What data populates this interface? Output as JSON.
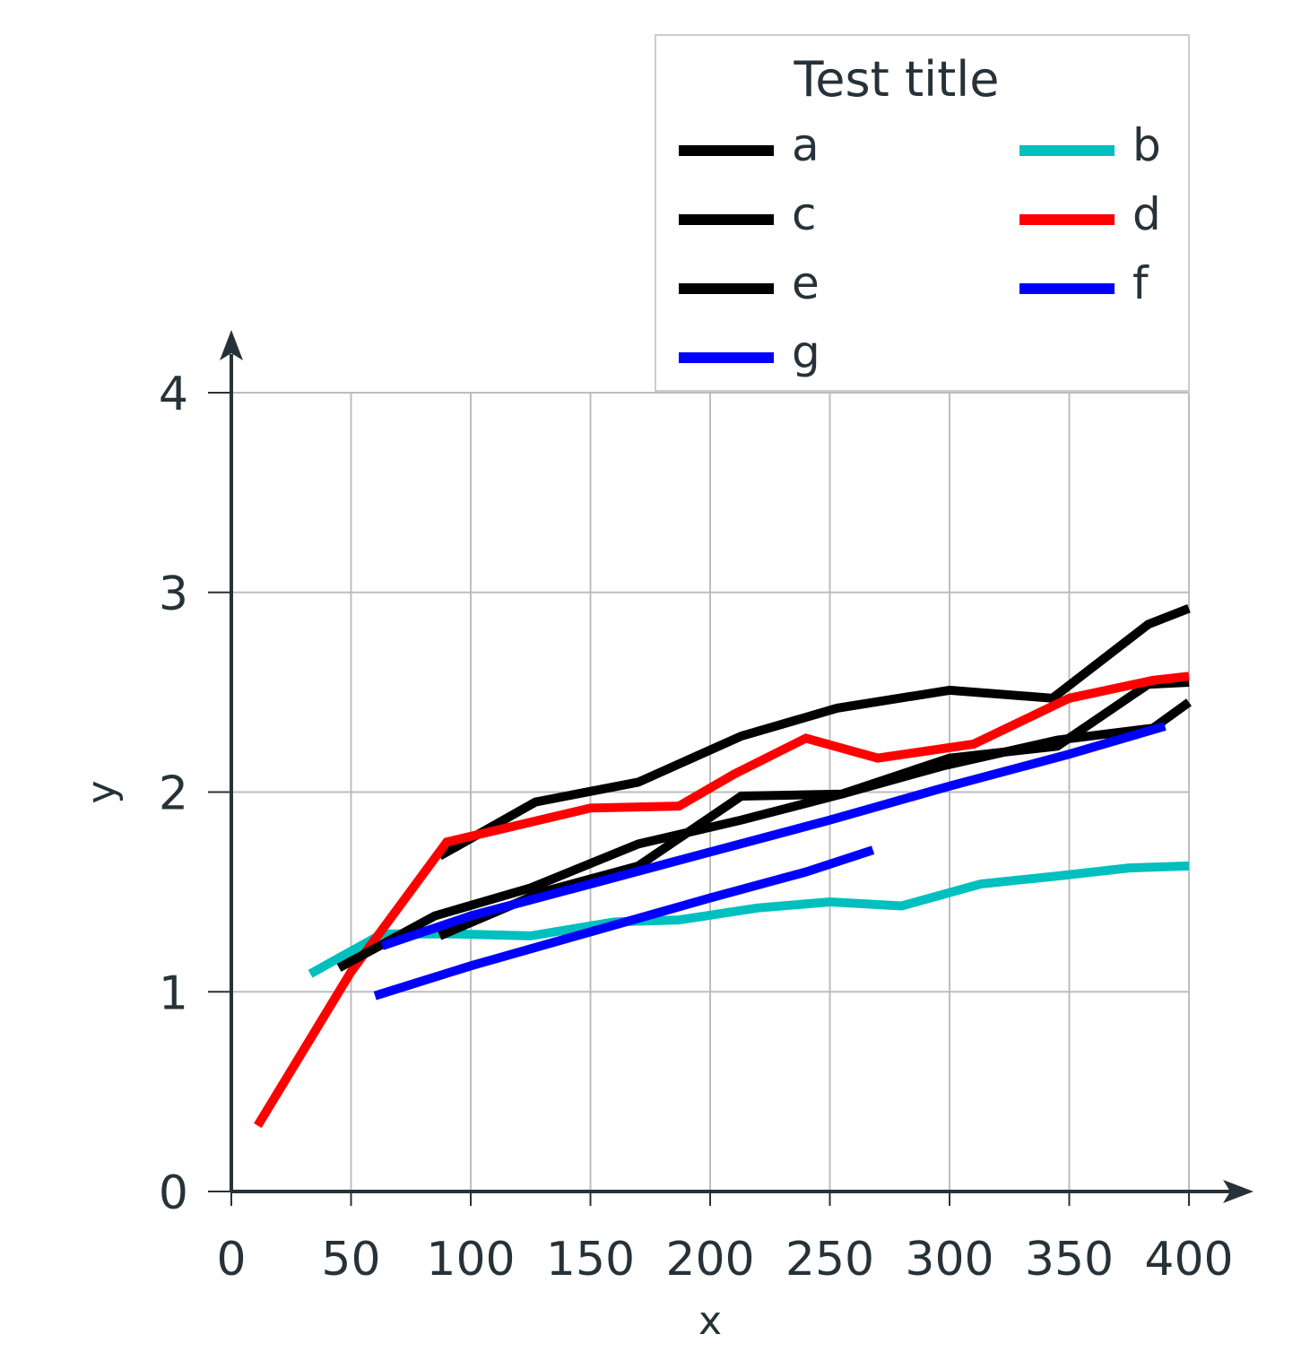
{
  "chart_data": {
    "type": "line",
    "xlabel": "x",
    "ylabel": "y",
    "xlim": [
      0,
      400
    ],
    "ylim": [
      0,
      4
    ],
    "x_ticks": [
      "0",
      "50",
      "100",
      "150",
      "200",
      "250",
      "300",
      "350",
      "400"
    ],
    "y_ticks": [
      "0",
      "1",
      "2",
      "3",
      "4"
    ],
    "grid": true,
    "legend": {
      "title": "Test title",
      "placement": "top-right",
      "columns": 2
    },
    "series": [
      {
        "name": "a",
        "color": "#000000",
        "x": [
          87,
          127,
          170,
          213,
          253,
          300,
          343,
          383,
          400
        ],
        "y": [
          1.68,
          1.95,
          2.05,
          2.28,
          2.42,
          2.51,
          2.47,
          2.84,
          2.92
        ]
      },
      {
        "name": "b",
        "color": "#00BFBF",
        "x": [
          33,
          63,
          93,
          125,
          160,
          187,
          220,
          250,
          280,
          313,
          345,
          375,
          400
        ],
        "y": [
          1.09,
          1.29,
          1.29,
          1.28,
          1.35,
          1.36,
          1.42,
          1.45,
          1.43,
          1.54,
          1.58,
          1.62,
          1.63
        ]
      },
      {
        "name": "c",
        "color": "#000000",
        "x": [
          87,
          130,
          170,
          213,
          255,
          300,
          345,
          383,
          400
        ],
        "y": [
          1.28,
          1.5,
          1.63,
          1.98,
          1.99,
          2.17,
          2.23,
          2.54,
          2.55
        ]
      },
      {
        "name": "d",
        "color": "#FF0000",
        "x": [
          11,
          50,
          90,
          150,
          187,
          210,
          240,
          270,
          310,
          350,
          385,
          400
        ],
        "y": [
          0.33,
          1.1,
          1.75,
          1.92,
          1.93,
          2.09,
          2.27,
          2.17,
          2.24,
          2.47,
          2.56,
          2.58
        ]
      },
      {
        "name": "e",
        "color": "#000000",
        "x": [
          45,
          85,
          125,
          170,
          213,
          255,
          297,
          345,
          385,
          400
        ],
        "y": [
          1.12,
          1.38,
          1.52,
          1.74,
          1.86,
          1.99,
          2.13,
          2.26,
          2.32,
          2.45
        ]
      },
      {
        "name": "f",
        "color": "#0000FF",
        "x": [
          63,
          100,
          150,
          200,
          250,
          300,
          350,
          390
        ],
        "y": [
          1.23,
          1.38,
          1.54,
          1.7,
          1.86,
          2.03,
          2.19,
          2.33
        ]
      },
      {
        "name": "g",
        "color": "#0000FF",
        "x": [
          60,
          100,
          150,
          200,
          240,
          268
        ],
        "y": [
          0.98,
          1.13,
          1.3,
          1.47,
          1.6,
          1.71
        ]
      }
    ]
  }
}
